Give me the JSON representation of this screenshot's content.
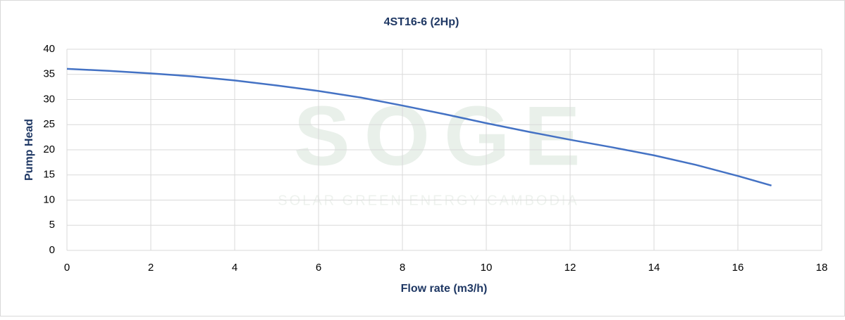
{
  "chart_data": {
    "type": "line",
    "title": "4ST16-6 (2Hp)",
    "x_label": "Flow rate (m3/h)",
    "y_label": "Pump Head",
    "watermark": "SOGE",
    "watermark_subtitle": "SOLAR GREEN ENERGY CAMBODIA",
    "x": [
      0,
      1,
      2,
      3,
      4,
      5,
      6,
      7,
      8,
      9,
      10,
      11,
      12,
      13,
      14,
      15,
      16,
      16.8
    ],
    "series": [
      {
        "name": "4ST16-6 (2Hp)",
        "color": "#4472c4",
        "values": [
          36.1,
          35.7,
          35.2,
          34.6,
          33.8,
          32.8,
          31.7,
          30.4,
          28.8,
          27.1,
          25.3,
          23.6,
          22.0,
          20.5,
          18.9,
          17.0,
          14.8,
          12.9
        ]
      }
    ],
    "xlim": [
      0,
      18
    ],
    "xticks": [
      0,
      2,
      4,
      6,
      8,
      10,
      12,
      14,
      16,
      18
    ],
    "ylim": [
      0,
      40
    ],
    "yticks": [
      0,
      5,
      10,
      15,
      20,
      25,
      30,
      35,
      40
    ],
    "grid": true
  }
}
